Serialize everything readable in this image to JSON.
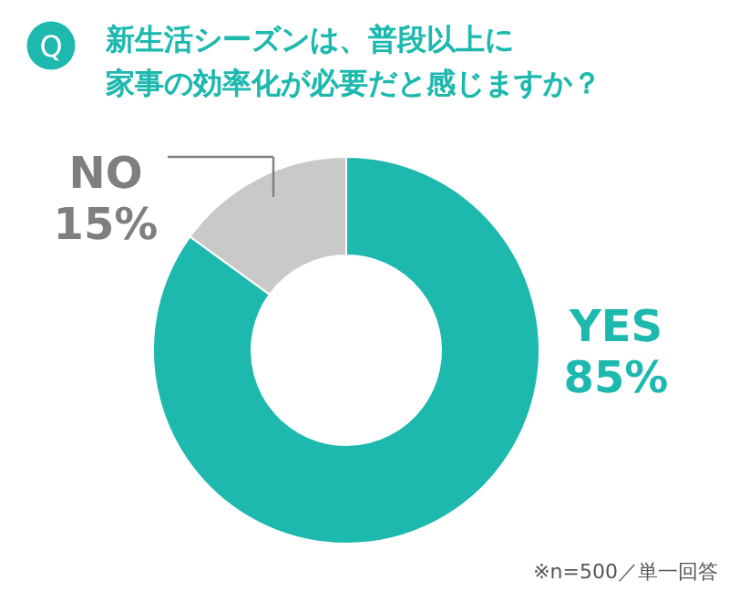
{
  "chart_data": {
    "type": "donut",
    "title": "新生活シーズンは、普段以上に",
    "subtitle": "家事の効率化が必要だと感じますか？",
    "categories": [
      "YES",
      "NO"
    ],
    "values": [
      85,
      15
    ],
    "value_labels": [
      "85%",
      "15%"
    ],
    "colors": [
      "#1db8ae",
      "#c9c9c9"
    ],
    "annotations": [
      "Q",
      "※n=500／単一回答"
    ]
  }
}
